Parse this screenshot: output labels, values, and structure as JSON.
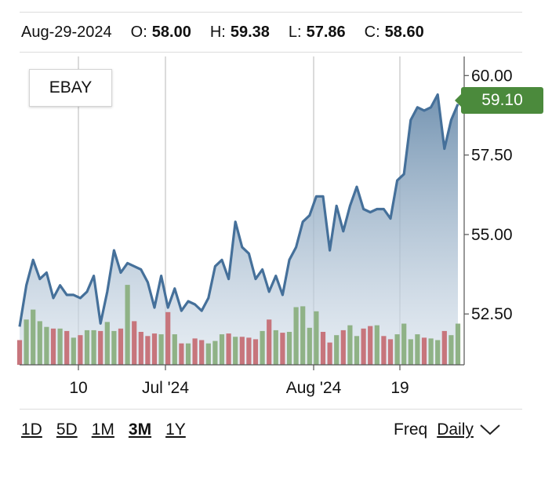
{
  "header": {
    "date": "Aug-29-2024",
    "open_label": "O:",
    "open": "58.00",
    "high_label": "H:",
    "high": "59.38",
    "low_label": "L:",
    "low": "57.86",
    "close_label": "C:",
    "close": "58.60"
  },
  "ticker": "EBAY",
  "last_price": "59.10",
  "ranges": [
    "1D",
    "5D",
    "1M",
    "3M",
    "1Y"
  ],
  "active_range": "3M",
  "freq": {
    "label": "Freq",
    "value": "Daily",
    "icon": "chevron-down-icon"
  },
  "colors": {
    "line": "#45709a",
    "volume_up": "#8fb286",
    "volume_down": "#c7757c",
    "badge": "#4b8a3c"
  },
  "chart_data": {
    "type": "area",
    "ylim": [
      50.9,
      60.6
    ],
    "yticks": [
      60.0,
      57.5,
      55.0,
      52.5
    ],
    "ytick_labels": [
      "60.00",
      "57.50",
      "55.00",
      "52.50"
    ],
    "x_ticks": [
      {
        "label": "10",
        "index": 6
      },
      {
        "label": "Jul '24",
        "index": 16
      },
      {
        "label": "Aug '24",
        "index": 33
      },
      {
        "label": "19",
        "index": 44
      }
    ],
    "values": [
      52.1,
      53.4,
      54.2,
      53.6,
      53.8,
      53.0,
      53.4,
      53.1,
      53.1,
      53.0,
      53.2,
      53.7,
      52.2,
      53.2,
      54.5,
      53.8,
      54.1,
      54.0,
      53.9,
      53.5,
      52.7,
      53.7,
      52.7,
      53.3,
      52.6,
      52.9,
      52.8,
      52.6,
      53.0,
      54.0,
      54.2,
      53.6,
      55.4,
      54.6,
      54.4,
      53.6,
      53.9,
      53.2,
      53.7,
      53.1,
      54.2,
      54.6,
      55.4,
      55.6,
      56.2,
      56.2,
      54.5,
      55.9,
      55.1,
      55.9,
      56.5,
      55.8,
      55.7,
      55.8,
      55.8,
      55.5,
      56.7,
      56.9,
      58.6,
      59.0,
      58.9,
      59.0,
      59.4,
      57.7,
      58.6,
      59.1
    ],
    "volume": [
      0.3,
      0.55,
      0.67,
      0.53,
      0.46,
      0.44,
      0.44,
      0.41,
      0.33,
      0.36,
      0.42,
      0.42,
      0.41,
      0.52,
      0.41,
      0.44,
      0.97,
      0.53,
      0.4,
      0.35,
      0.38,
      0.37,
      0.64,
      0.37,
      0.26,
      0.26,
      0.32,
      0.3,
      0.26,
      0.29,
      0.37,
      0.38,
      0.34,
      0.34,
      0.33,
      0.31,
      0.41,
      0.55,
      0.42,
      0.39,
      0.4,
      0.7,
      0.71,
      0.45,
      0.65,
      0.4,
      0.27,
      0.36,
      0.42,
      0.48,
      0.35,
      0.44,
      0.47,
      0.48,
      0.35,
      0.31,
      0.37,
      0.5,
      0.31,
      0.37,
      0.33,
      0.32,
      0.3,
      0.41,
      0.36,
      0.5
    ],
    "volume_up": [
      false,
      true,
      true,
      true,
      true,
      false,
      true,
      false,
      true,
      false,
      true,
      true,
      false,
      true,
      true,
      false,
      true,
      false,
      false,
      false,
      false,
      true,
      false,
      true,
      false,
      true,
      false,
      false,
      true,
      true,
      true,
      false,
      true,
      false,
      false,
      false,
      true,
      false,
      true,
      false,
      true,
      true,
      true,
      true,
      true,
      false,
      false,
      true,
      false,
      true,
      true,
      false,
      false,
      true,
      false,
      false,
      true,
      true,
      true,
      true,
      false,
      true,
      true,
      false,
      true,
      true
    ]
  }
}
